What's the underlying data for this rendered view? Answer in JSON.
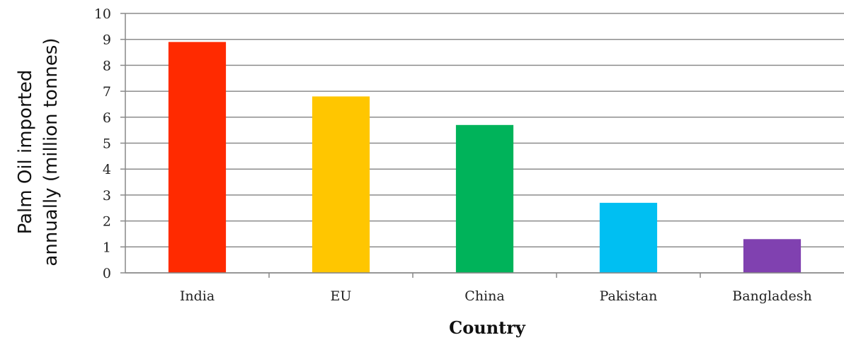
{
  "chart_data": {
    "type": "bar",
    "title": "",
    "xlabel": "Country",
    "ylabel_lines": [
      "Palm Oil imported",
      "annually (million tonnes)"
    ],
    "categories": [
      "India",
      "EU",
      "China",
      "Pakistan",
      "Bangladesh"
    ],
    "values": [
      8.9,
      6.8,
      5.7,
      2.7,
      1.3
    ],
    "colors": [
      "#ff2a00",
      "#ffc600",
      "#00b35a",
      "#00bff2",
      "#8041b0"
    ],
    "ylim": [
      0,
      10
    ],
    "yticks": [
      0,
      1,
      2,
      3,
      4,
      5,
      6,
      7,
      8,
      9,
      10
    ],
    "grid": true,
    "legend": "none"
  }
}
